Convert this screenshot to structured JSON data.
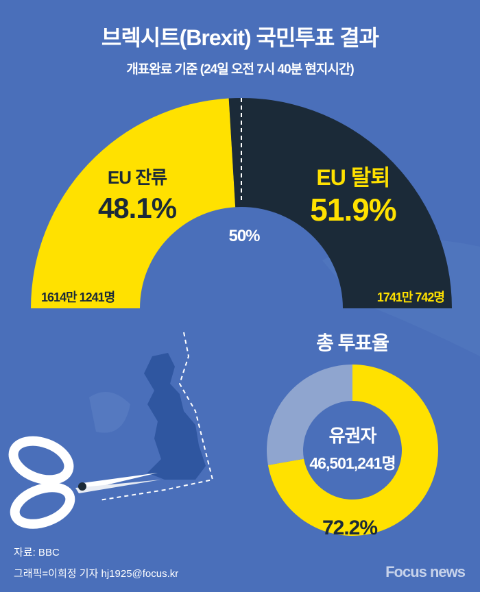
{
  "title": "브렉시트(Brexit) 국민투표 결과",
  "subtitle": "개표완료 기준 (24일  오전 7시 40분 현지시간)",
  "colors": {
    "background": "#4a6fba",
    "remain": "#ffe100",
    "leave": "#1b2a38",
    "turnout_rest": "#8fa5cf"
  },
  "chart_data": [
    {
      "type": "pie",
      "subtype": "half-donut",
      "title": "",
      "categories": [
        "EU 잔류",
        "EU 탈퇴"
      ],
      "values": [
        48.1,
        51.9
      ],
      "value_labels": [
        "48.1%",
        "51.9%"
      ],
      "counts": [
        "1614만 1241명",
        "1741만 742명"
      ],
      "reference_line": {
        "value": 50,
        "label": "50%"
      }
    },
    {
      "type": "pie",
      "subtype": "donut",
      "title": "총 투표율",
      "values": [
        72.2,
        27.8
      ],
      "value_label": "72.2%",
      "center_label": "유권자",
      "center_value": "46,501,241명"
    }
  ],
  "footer": {
    "source": "자료: BBC",
    "credit": "그래픽=이희정 기자 hj1925@focus.kr",
    "logo": "Focus news"
  }
}
